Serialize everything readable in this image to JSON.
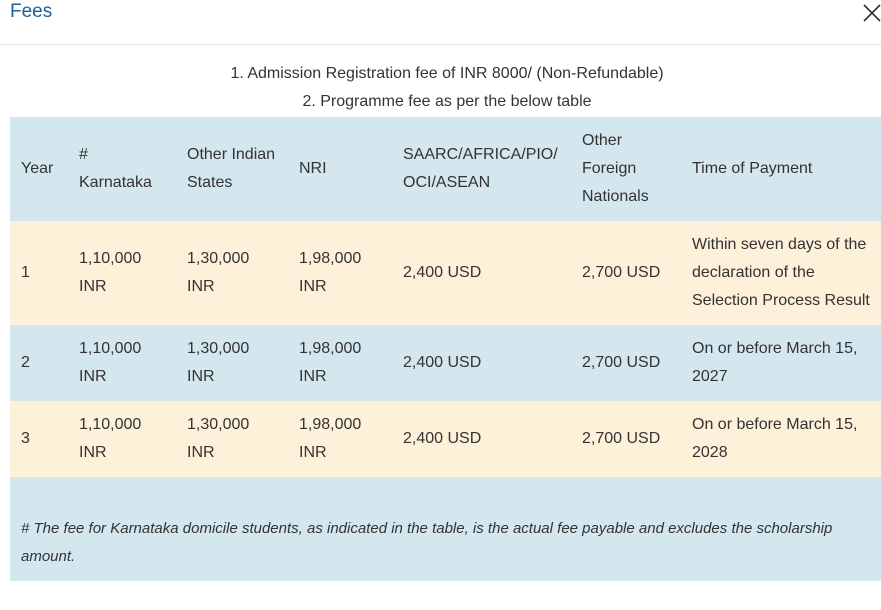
{
  "header": {
    "title": "Fees"
  },
  "notes": [
    "1. Admission Registration fee of INR 8000/ (Non-Refundable)",
    "2. Programme fee as per the below table"
  ],
  "table": {
    "columns": [
      "Year",
      "# Karnataka",
      "Other Indian States",
      "NRI",
      "SAARC/AFRICA/PIO/OCI/ASEAN",
      "Other Foreign Nationals",
      "Time of Payment"
    ],
    "rows": [
      [
        "1",
        "1,10,000 INR",
        "1,30,000 INR",
        "1,98,000 INR",
        "2,400 USD",
        "2,700 USD",
        "Within seven days of the declaration of the Selection Process Result"
      ],
      [
        "2",
        "1,10,000 INR",
        "1,30,000 INR",
        "1,98,000 INR",
        "2,400 USD",
        "2,700 USD",
        "On or before March 15, 2027"
      ],
      [
        "3",
        "1,10,000 INR",
        "1,30,000 INR",
        "1,98,000 INR",
        "2,400 USD",
        "2,700 USD",
        "On or before March 15, 2028"
      ]
    ],
    "footnote": "# The fee for Karnataka domicile students, as indicated in the table, is the actual fee payable and excludes the scholarship amount."
  }
}
